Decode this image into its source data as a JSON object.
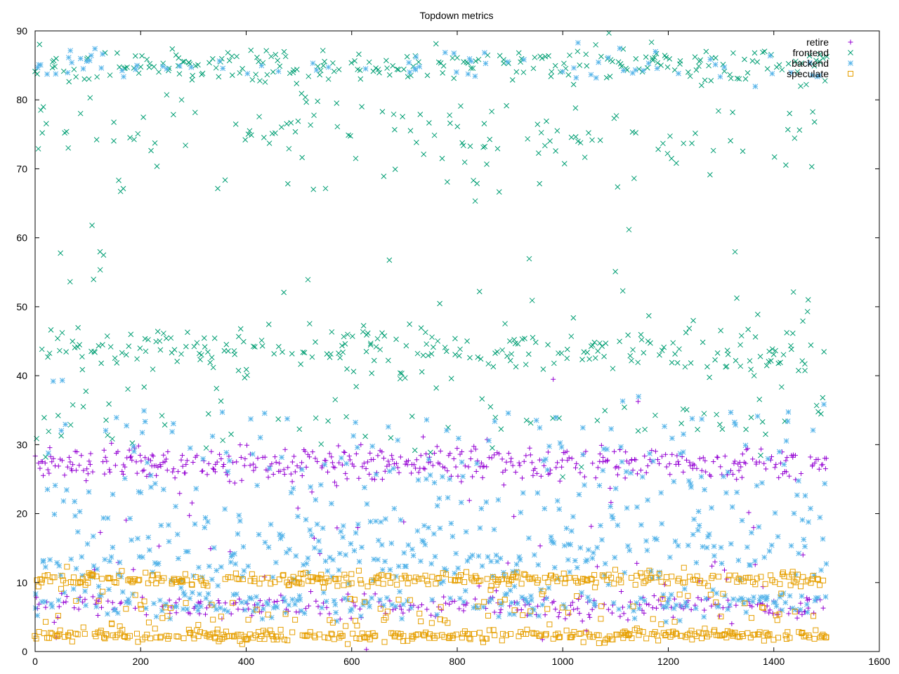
{
  "chart_data": {
    "type": "scatter",
    "title": "Topdown metrics",
    "xlabel": "",
    "ylabel": "",
    "xlim": [
      0,
      1600
    ],
    "ylim": [
      0,
      90
    ],
    "xticks": [
      0,
      200,
      400,
      600,
      800,
      1000,
      1200,
      1400,
      1600
    ],
    "yticks": [
      0,
      10,
      20,
      30,
      40,
      50,
      60,
      70,
      80,
      90
    ],
    "grid": false,
    "legend_position": "top-right",
    "x_domain": [
      0,
      1500
    ],
    "series": [
      {
        "name": "retire",
        "marker": "plus",
        "color": "#9400d3",
        "clusters": [
          {
            "center": 27.2,
            "spread": 1.2,
            "weight": 0.6
          },
          {
            "center": 6.6,
            "spread": 0.9,
            "weight": 0.3
          },
          {
            "center": 18.0,
            "spread": 9.0,
            "weight": 0.1
          }
        ]
      },
      {
        "name": "frontend",
        "marker": "cross",
        "color": "#009e73",
        "clusters": [
          {
            "center": 85.0,
            "spread": 1.3,
            "weight": 0.33
          },
          {
            "center": 43.5,
            "spread": 1.8,
            "weight": 0.33
          },
          {
            "center": 75.0,
            "spread": 3.0,
            "weight": 0.17
          },
          {
            "center": 55.0,
            "spread": 12.0,
            "weight": 0.08
          },
          {
            "center": 33.0,
            "spread": 2.5,
            "weight": 0.09
          }
        ]
      },
      {
        "name": "backend",
        "marker": "star",
        "color": "#56b4e9",
        "clusters": [
          {
            "center": 7.0,
            "spread": 1.2,
            "weight": 0.3
          },
          {
            "center": 13.0,
            "spread": 2.0,
            "weight": 0.22
          },
          {
            "center": 18.0,
            "spread": 3.0,
            "weight": 0.2
          },
          {
            "center": 25.5,
            "spread": 2.5,
            "weight": 0.12
          },
          {
            "center": 33.0,
            "spread": 3.0,
            "weight": 0.08
          },
          {
            "center": 85.0,
            "spread": 1.2,
            "weight": 0.08
          }
        ]
      },
      {
        "name": "speculate",
        "marker": "square",
        "color": "#e69f00",
        "clusters": [
          {
            "center": 10.5,
            "spread": 0.5,
            "weight": 0.45
          },
          {
            "center": 2.3,
            "spread": 0.4,
            "weight": 0.4
          },
          {
            "center": 6.0,
            "spread": 2.5,
            "weight": 0.15
          }
        ]
      }
    ],
    "points_per_series": 750,
    "note_hidden": ""
  }
}
